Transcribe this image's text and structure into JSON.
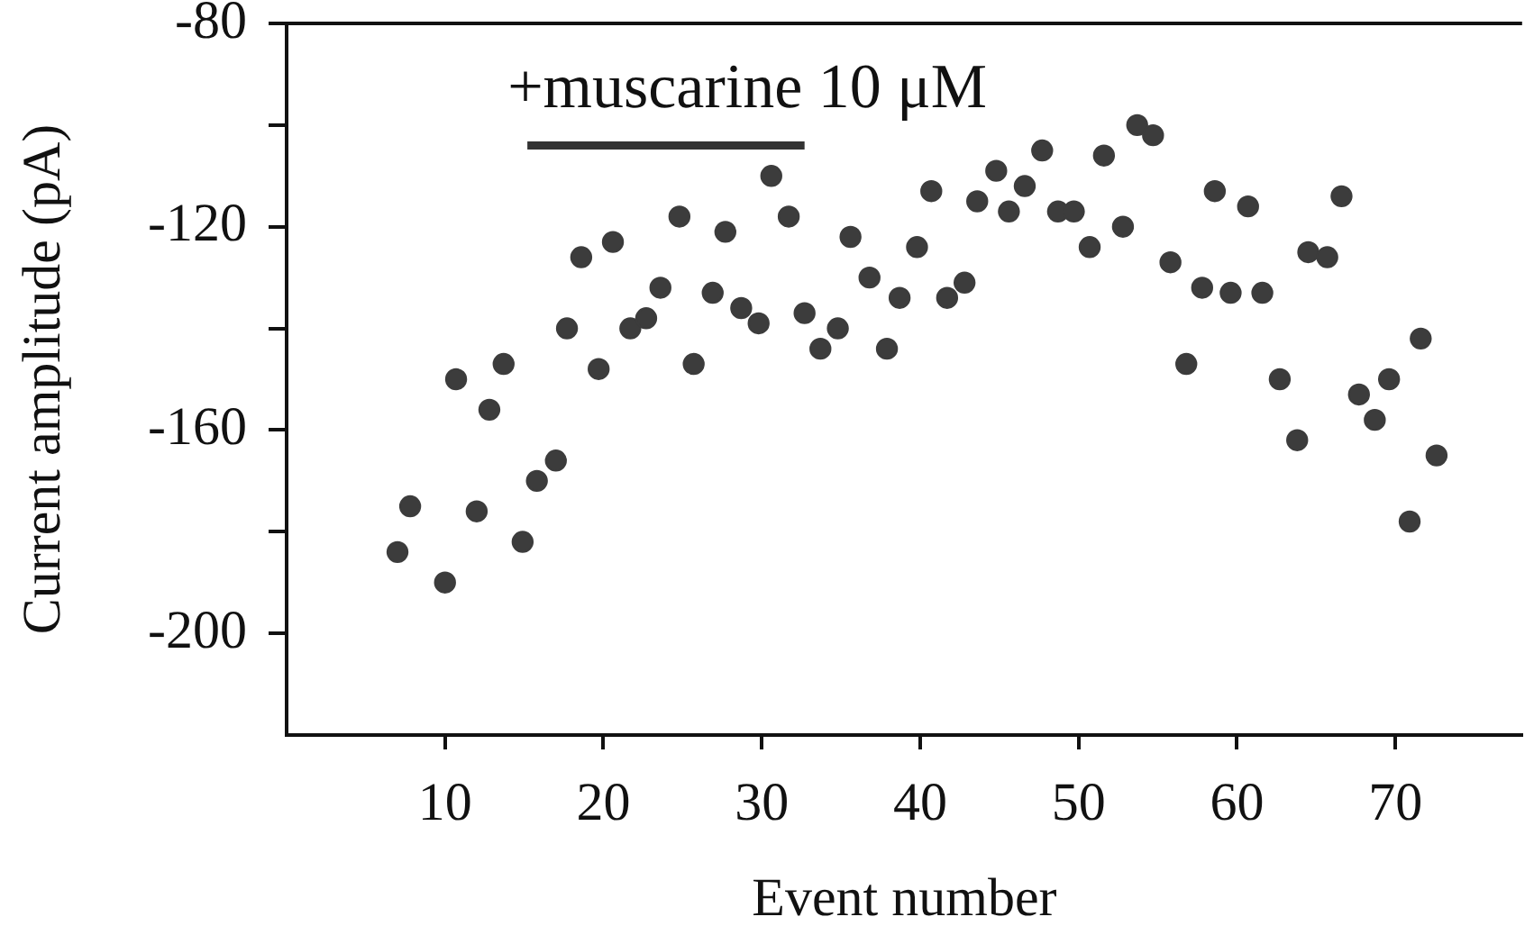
{
  "chart_data": {
    "type": "scatter",
    "xlabel": "Event number",
    "ylabel": "Current amplitude (pA)",
    "series": [
      {
        "color": "#3c3c3c",
        "marker": "circle",
        "x": [
          7.0,
          7.8,
          10.0,
          10.7,
          12.0,
          12.8,
          13.7,
          14.9,
          15.8,
          17.0,
          17.7,
          18.6,
          19.7,
          20.6,
          21.7,
          22.7,
          23.6,
          24.8,
          25.7,
          26.9,
          27.7,
          28.7,
          29.8,
          30.6,
          31.7,
          32.7,
          33.7,
          34.8,
          35.6,
          36.8,
          37.9,
          38.7,
          39.8,
          40.7,
          41.7,
          42.8,
          43.6,
          44.8,
          45.6,
          46.6,
          47.7,
          48.7,
          49.7,
          50.7,
          51.6,
          52.8,
          53.7,
          54.7,
          55.8,
          56.8,
          57.8,
          58.6,
          59.6,
          60.7,
          61.6,
          62.7,
          63.8,
          64.5,
          65.7,
          66.6,
          67.7,
          68.7,
          69.6,
          70.9,
          71.6,
          72.6
        ],
        "values": [
          -184,
          -175,
          -190,
          -150,
          -176,
          -156,
          -147,
          -182,
          -170,
          -166,
          -140,
          -126,
          -148,
          -123,
          -140,
          -138,
          -132,
          -118,
          -147,
          -133,
          -121,
          -136,
          -139,
          -110,
          -118,
          -137,
          -144,
          -140,
          -122,
          -130,
          -144,
          -134,
          -124,
          -113,
          -134,
          -131,
          -115,
          -109,
          -117,
          -112,
          -105,
          -117,
          -117,
          -124,
          -106,
          -120,
          -100,
          -102,
          -127,
          -147,
          -132,
          -113,
          -133,
          -116,
          -133,
          -150,
          -162,
          -125,
          -126,
          -114,
          -153,
          -158,
          -150,
          -178,
          -142,
          -165
        ]
      },
      {
        "type": "line",
        "color": "#333333",
        "marker": "none",
        "x": [
          15.2,
          32.7
        ],
        "values": [
          -104,
          -104
        ]
      }
    ],
    "annotations": [
      "+muscarine 10 μM"
    ],
    "xlim": [
      0,
      78
    ],
    "ylim": [
      -220,
      -80
    ],
    "xticks": [
      10,
      20,
      30,
      40,
      50,
      60,
      70
    ],
    "yticks": [
      -80,
      {
        "value": -100,
        "label": null
      },
      -120,
      {
        "value": -140,
        "label": null
      },
      -160,
      {
        "value": -180,
        "label": null
      },
      -200
    ],
    "grid": false,
    "legend": false
  }
}
